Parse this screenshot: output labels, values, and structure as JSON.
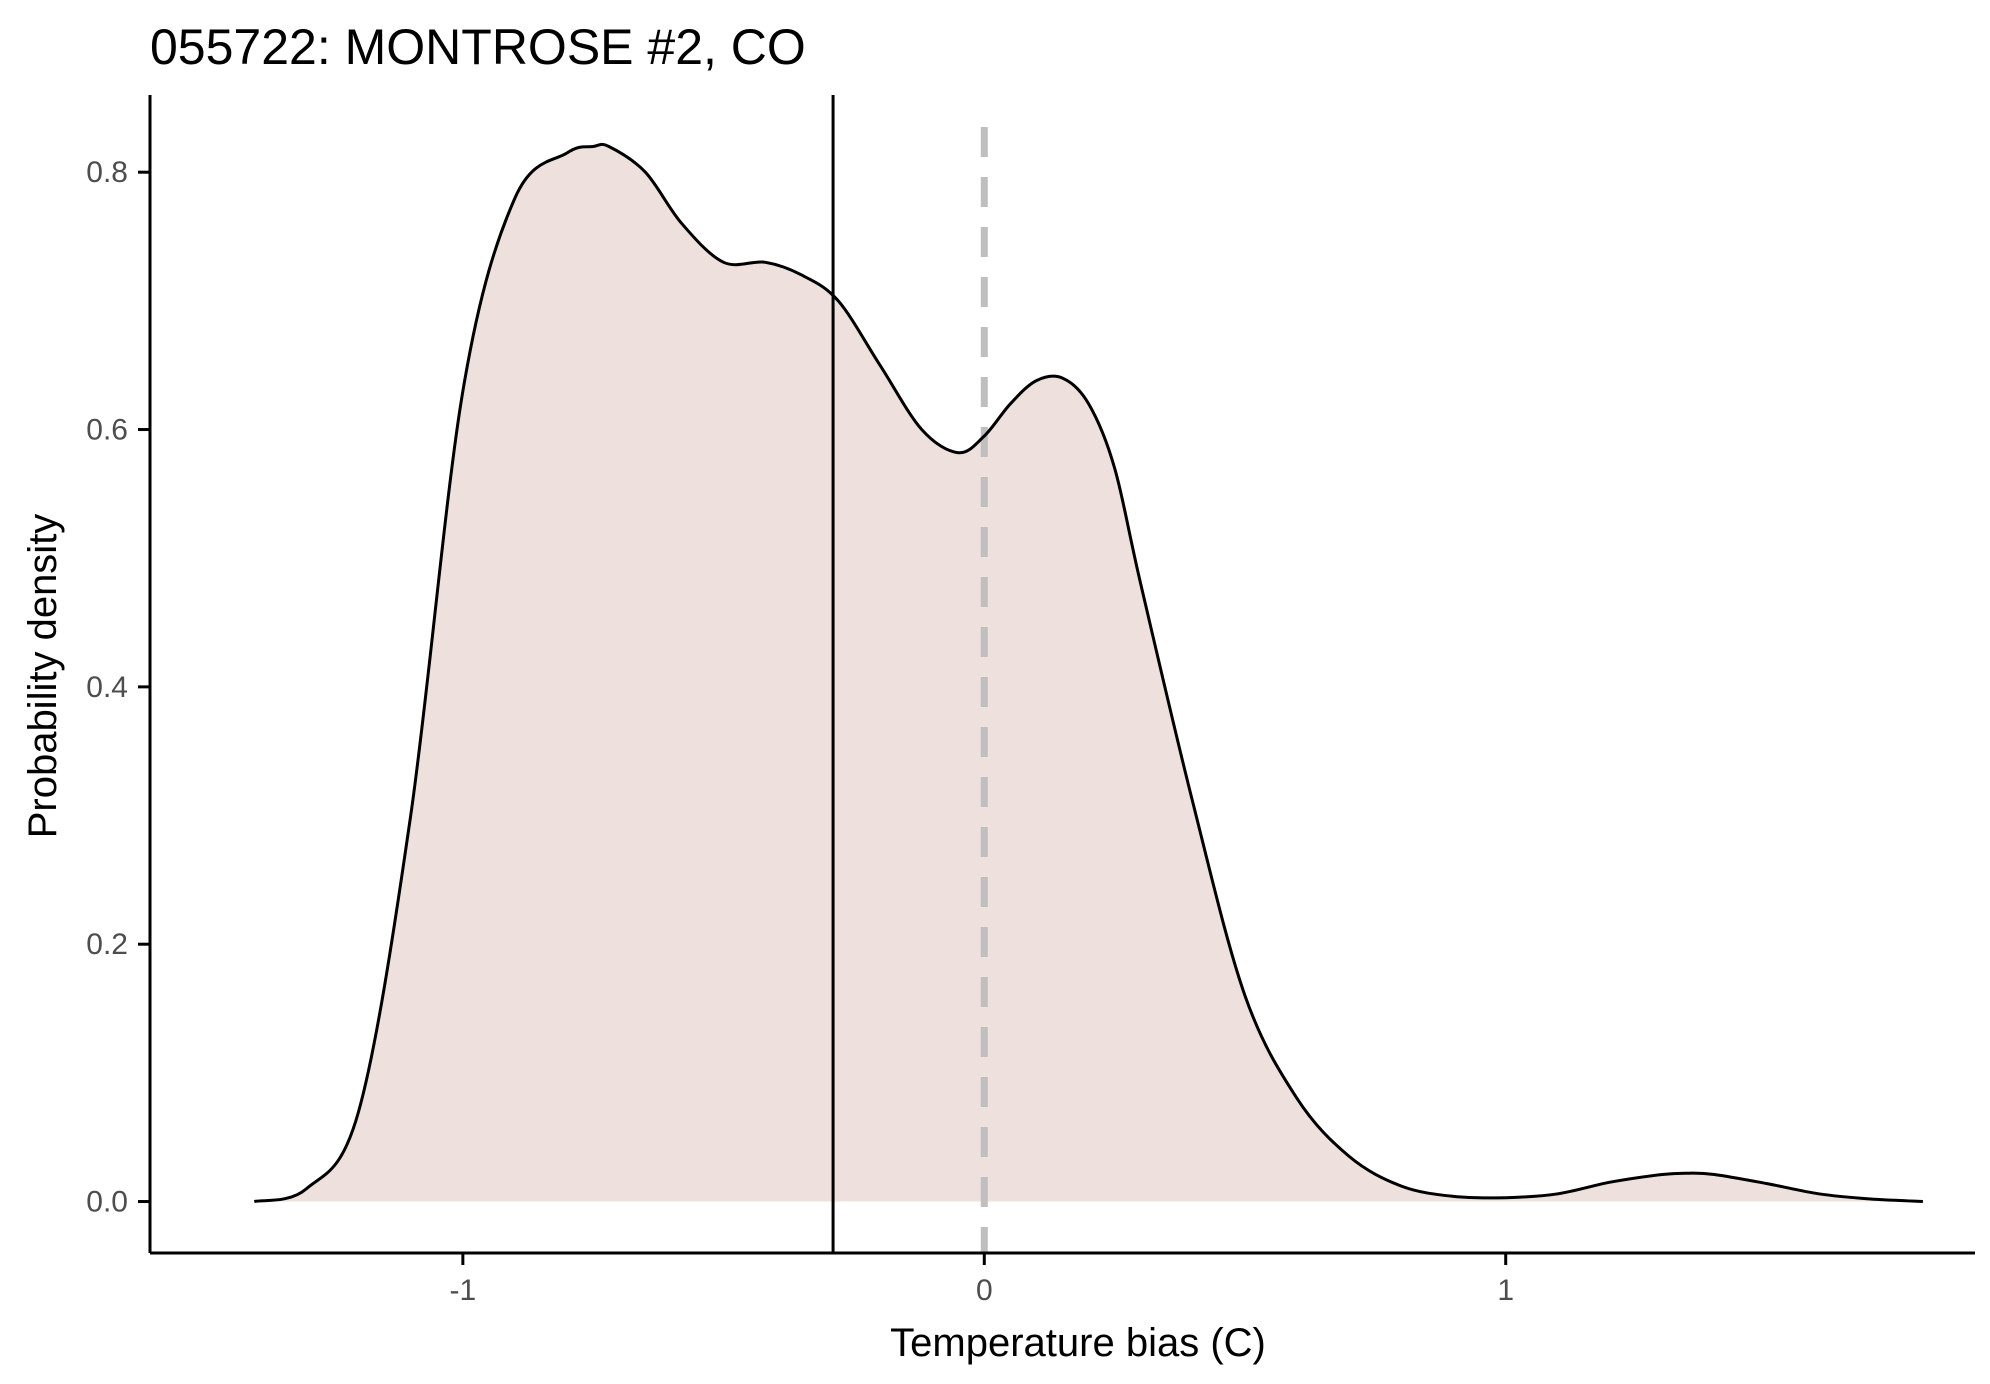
{
  "chart_data": {
    "type": "area",
    "title": "055722: MONTROSE #2, CO",
    "xlabel": "Temperature bias (C)",
    "ylabel": "Probability density",
    "xlim": [
      -1.6,
      1.9
    ],
    "ylim": [
      -0.04,
      0.86
    ],
    "x_ticks": [
      {
        "value": -1,
        "label": "-1"
      },
      {
        "value": 0,
        "label": "0"
      },
      {
        "value": 1,
        "label": "1"
      }
    ],
    "y_ticks": [
      {
        "value": 0.0,
        "label": "0.0"
      },
      {
        "value": 0.2,
        "label": "0.2"
      },
      {
        "value": 0.4,
        "label": "0.4"
      },
      {
        "value": 0.6,
        "label": "0.6"
      },
      {
        "value": 0.8,
        "label": "0.8"
      }
    ],
    "grid": false,
    "fill_color": "#ede0dd",
    "line_color": "#000000",
    "density": {
      "x": [
        -1.4,
        -1.3,
        -1.2,
        -1.1,
        -1.0,
        -0.9,
        -0.8,
        -0.75,
        -0.72,
        -0.65,
        -0.58,
        -0.5,
        -0.42,
        -0.35,
        -0.28,
        -0.2,
        -0.12,
        -0.05,
        0.0,
        0.05,
        0.1,
        0.15,
        0.2,
        0.25,
        0.3,
        0.4,
        0.5,
        0.6,
        0.7,
        0.8,
        0.9,
        1.0,
        1.1,
        1.2,
        1.3,
        1.35,
        1.4,
        1.5,
        1.6,
        1.7,
        1.8
      ],
      "y": [
        0.0,
        0.01,
        0.07,
        0.3,
        0.63,
        0.78,
        0.815,
        0.82,
        0.82,
        0.8,
        0.76,
        0.73,
        0.73,
        0.72,
        0.7,
        0.65,
        0.6,
        0.582,
        0.595,
        0.62,
        0.638,
        0.64,
        0.62,
        0.57,
        0.48,
        0.31,
        0.16,
        0.08,
        0.035,
        0.012,
        0.004,
        0.003,
        0.006,
        0.015,
        0.021,
        0.022,
        0.021,
        0.014,
        0.006,
        0.002,
        0.0
      ]
    },
    "mean_line": {
      "x": -0.29,
      "color": "#000000",
      "style": "solid"
    },
    "zero_line": {
      "x": 0,
      "color": "#bfbfbf",
      "style": "dashed"
    }
  }
}
